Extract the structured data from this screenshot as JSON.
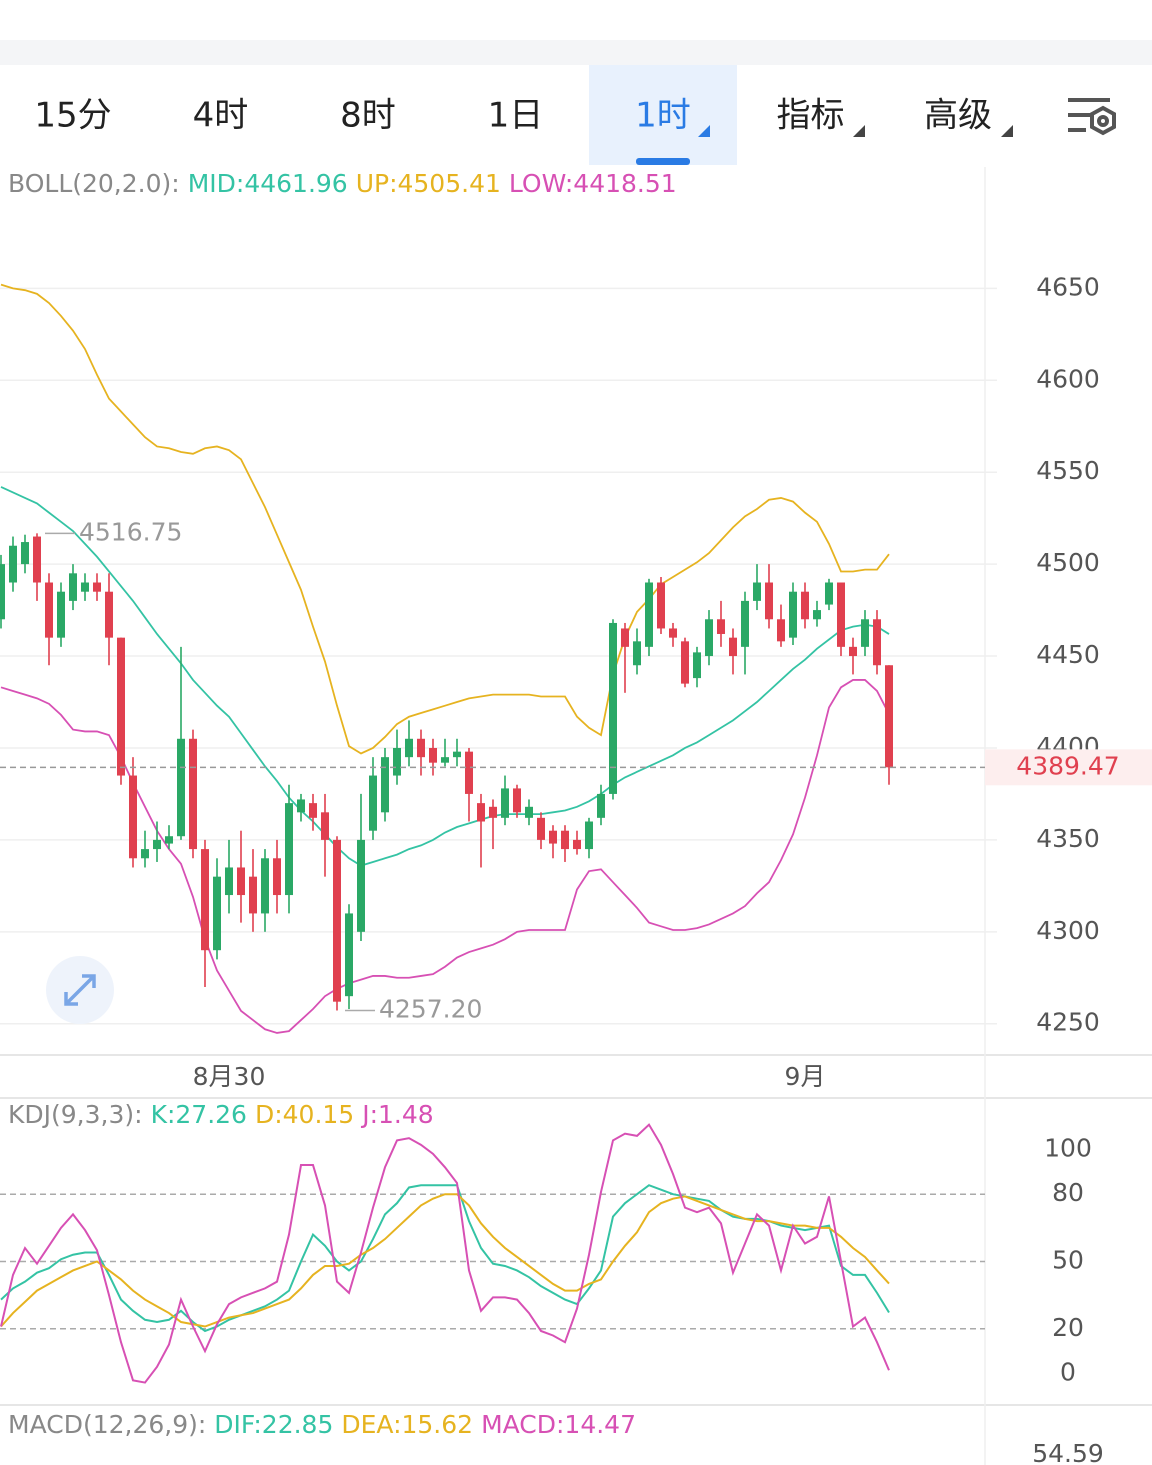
{
  "tabs": [
    "15分",
    "4时",
    "8时",
    "1日",
    "1时",
    "指标",
    "高级"
  ],
  "active_tab": 4,
  "chart_data": [
    {
      "type": "candlestick",
      "title": "BOLL(20,2.0):",
      "categories": [
        null,
        null,
        null,
        null,
        null,
        null,
        null,
        null,
        null,
        null,
        null,
        null,
        null,
        null,
        null,
        null,
        null,
        null,
        null,
        "8月30",
        null,
        null,
        null,
        null,
        null,
        null,
        null,
        null,
        null,
        null,
        null,
        null,
        null,
        null,
        null,
        null,
        null,
        null,
        null,
        null,
        null,
        null,
        null,
        null,
        null,
        null,
        null,
        null,
        null,
        null,
        null,
        null,
        null,
        null,
        null,
        null,
        null,
        null,
        null,
        null,
        null,
        null,
        null,
        null,
        null,
        null,
        null,
        "9月",
        null,
        null,
        null,
        null,
        null,
        null,
        null
      ],
      "open": [
        4470,
        4490,
        4500,
        4515,
        4490,
        4460,
        4480,
        4485,
        4490,
        4485,
        4460,
        4385,
        4340,
        4345,
        4348,
        4352,
        4405,
        4345,
        4290,
        4320,
        4335,
        4330,
        4310,
        4340,
        4320,
        4365,
        4370,
        4365,
        4350,
        4265,
        4300,
        4355,
        4365,
        4385,
        4395,
        4405,
        4400,
        4392,
        4395,
        4398,
        4370,
        4368,
        4362,
        4378,
        4362,
        4362,
        4355,
        4355,
        4350,
        4345,
        4362,
        4375,
        4465,
        4445,
        4455,
        4490,
        4465,
        4458,
        4438,
        4450,
        4470,
        4460,
        4455,
        4480,
        4490,
        4470,
        4460,
        4485,
        4470,
        4478,
        4490,
        4455,
        4455,
        4470,
        4445
      ],
      "high": [
        4505,
        4515,
        4516,
        4516.75,
        4495,
        4490,
        4500,
        4495,
        4495,
        4495,
        4460,
        4395,
        4355,
        4360,
        4358,
        4455,
        4410,
        4350,
        4340,
        4350,
        4355,
        4345,
        4345,
        4350,
        4380,
        4375,
        4375,
        4375,
        4352,
        4315,
        4375,
        4395,
        4400,
        4410,
        4415,
        4410,
        4405,
        4405,
        4405,
        4400,
        4375,
        4372,
        4385,
        4380,
        4372,
        4365,
        4358,
        4358,
        4355,
        4362,
        4380,
        4470,
        4468,
        4465,
        4492,
        4493,
        4468,
        4460,
        4455,
        4475,
        4480,
        4465,
        4485,
        4500,
        4500,
        4478,
        4490,
        4490,
        4480,
        4492,
        4490,
        4460,
        4475,
        4475,
        4445
      ],
      "low": [
        4465,
        4485,
        4495,
        4480,
        4445,
        4455,
        4475,
        4480,
        4480,
        4445,
        4380,
        4335,
        4335,
        4338,
        4345,
        4350,
        4340,
        4270,
        4285,
        4310,
        4305,
        4300,
        4300,
        4310,
        4310,
        4360,
        4355,
        4330,
        4257.2,
        4258,
        4295,
        4350,
        4360,
        4380,
        4390,
        4385,
        4385,
        4390,
        4390,
        4360,
        4335,
        4345,
        4358,
        4362,
        4358,
        4345,
        4340,
        4338,
        4342,
        4340,
        4358,
        4372,
        4430,
        4440,
        4450,
        4462,
        4455,
        4433,
        4433,
        4445,
        4455,
        4440,
        4440,
        4475,
        4465,
        4455,
        4456,
        4465,
        4466,
        4475,
        4450,
        4440,
        4450,
        4440,
        4380
      ],
      "close": [
        4500,
        4510,
        4512,
        4490,
        4460,
        4485,
        4495,
        4490,
        4485,
        4460,
        4385,
        4340,
        4345,
        4350,
        4352,
        4405,
        4345,
        4290,
        4330,
        4335,
        4320,
        4310,
        4340,
        4320,
        4370,
        4372,
        4362,
        4350,
        4262,
        4310,
        4350,
        4385,
        4395,
        4400,
        4405,
        4395,
        4392,
        4395,
        4398,
        4375,
        4360,
        4362,
        4378,
        4365,
        4368,
        4350,
        4348,
        4345,
        4345,
        4360,
        4375,
        4468,
        4455,
        4458,
        4490,
        4465,
        4460,
        4435,
        4452,
        4470,
        4462,
        4450,
        4480,
        4490,
        4470,
        4458,
        4485,
        4470,
        4475,
        4490,
        4455,
        4450,
        4470,
        4445,
        4389.47
      ],
      "up_color": "#2aa866",
      "down_color": "#e0404f",
      "series": [
        {
          "name": "MID:4461.96",
          "color": "#34c3a4",
          "values": [
            4542,
            4539,
            4536,
            4533,
            4528,
            4523,
            4518,
            4511,
            4504,
            4496,
            4488,
            4480,
            4471,
            4462,
            4454,
            4446,
            4437,
            4430,
            4423,
            4417,
            4408,
            4399,
            4390,
            4382,
            4373,
            4366,
            4360,
            4353,
            4346,
            4340,
            4336,
            4338,
            4340,
            4342,
            4345,
            4347,
            4350,
            4354,
            4357,
            4359,
            4361,
            4363,
            4364,
            4364,
            4364,
            4364,
            4365,
            4366,
            4368,
            4371,
            4375,
            4380,
            4384,
            4387,
            4390,
            4393,
            4396,
            4400,
            4403,
            4407,
            4411,
            4415,
            4420,
            4425,
            4431,
            4437,
            4443,
            4448,
            4454,
            4459,
            4464,
            4466,
            4467,
            4466,
            4461.96
          ]
        },
        {
          "name": "UP:4505.41",
          "color": "#e6b320",
          "values": [
            4652,
            4650,
            4649,
            4647,
            4642,
            4635,
            4627,
            4617,
            4603,
            4590,
            4583,
            4576,
            4569,
            4564,
            4563,
            4561,
            4560,
            4563,
            4564,
            4562,
            4557,
            4544,
            4531,
            4516,
            4501,
            4486,
            4466,
            4447,
            4423,
            4401,
            4397,
            4400,
            4406,
            4413,
            4417,
            4419,
            4421,
            4423,
            4425,
            4427,
            4428,
            4429,
            4429,
            4429,
            4429,
            4428,
            4428,
            4428,
            4417,
            4411,
            4407,
            4440,
            4460,
            4474,
            4481,
            4489,
            4493,
            4497,
            4501,
            4506,
            4513,
            4520,
            4526,
            4530,
            4535,
            4536,
            4534,
            4528,
            4523,
            4511,
            4496,
            4496,
            4497,
            4497,
            4505.41
          ]
        },
        {
          "name": "LOW:4418.51",
          "color": "#d750b4",
          "values": [
            4433,
            4431,
            4429,
            4427,
            4424,
            4418,
            4410,
            4409,
            4409,
            4407,
            4395,
            4381,
            4368,
            4355,
            4345,
            4337,
            4319,
            4296,
            4279,
            4268,
            4257,
            4252,
            4247,
            4245,
            4246,
            4252,
            4258,
            4265,
            4269,
            4272,
            4274,
            4276,
            4276,
            4275,
            4275,
            4276,
            4277,
            4281,
            4286,
            4289,
            4291,
            4293,
            4296,
            4300,
            4301,
            4301,
            4301,
            4301,
            4323,
            4333,
            4334,
            4327,
            4320,
            4313,
            4305,
            4303,
            4301,
            4301,
            4302,
            4304,
            4307,
            4310,
            4314,
            4321,
            4327,
            4339,
            4353,
            4373,
            4396,
            4422,
            4433,
            4437,
            4437,
            4431,
            4418.51
          ]
        }
      ],
      "annotations": [
        4516.75,
        {
          "value": 4257.2,
          "label": "4257.20"
        }
      ],
      "last_price": 4389.47,
      "ylim": [
        4233,
        4716
      ],
      "yticks": [
        4250,
        4300,
        4350,
        4400,
        4450,
        4500,
        4550,
        4600,
        4650
      ],
      "grid": true
    },
    {
      "type": "line",
      "title": "KDJ(9,3,3):",
      "series": [
        {
          "name": "K:27.26",
          "color": "#34c3a4",
          "values": [
            33,
            38,
            41,
            45,
            47,
            51,
            53,
            54,
            54,
            44,
            33,
            28,
            24,
            23,
            24,
            28,
            23,
            19,
            21,
            24,
            26,
            28,
            30,
            33,
            37,
            50,
            62,
            57,
            50,
            46,
            50,
            60,
            71,
            76,
            83,
            84,
            84,
            84,
            84,
            68,
            56,
            49,
            48,
            46,
            43,
            39,
            36,
            33,
            31,
            38,
            46,
            70,
            76,
            80,
            84,
            82,
            80,
            79,
            78,
            77,
            73,
            70,
            69,
            69,
            68,
            66,
            65,
            64,
            65,
            66,
            48,
            44,
            44,
            36,
            27.26
          ]
        },
        {
          "name": "D:40.15",
          "color": "#e6b320",
          "values": [
            21,
            27,
            32,
            37,
            40,
            43,
            46,
            48,
            50,
            46,
            42,
            37,
            33,
            30,
            27,
            23,
            22,
            21,
            23,
            25,
            26,
            27,
            29,
            31,
            33,
            38,
            44,
            48,
            48,
            49,
            53,
            56,
            60,
            65,
            70,
            75,
            78,
            80,
            80,
            75,
            67,
            61,
            56,
            52,
            48,
            44,
            40,
            37,
            37,
            40,
            42,
            50,
            57,
            63,
            72,
            76,
            78,
            79,
            77,
            75,
            73,
            71,
            69,
            68,
            68,
            67,
            66,
            66,
            65,
            65,
            61,
            56,
            52,
            46,
            40.15
          ]
        },
        {
          "name": "J:1.48",
          "color": "#d750b4",
          "values": [
            21,
            44,
            56,
            49,
            57,
            65,
            71,
            64,
            55,
            35,
            14,
            -3,
            -4,
            3,
            13,
            33,
            21,
            10,
            22,
            31,
            34,
            36,
            38,
            41,
            62,
            93,
            93,
            75,
            41,
            36,
            54,
            74,
            92,
            104,
            105,
            102,
            98,
            92,
            85,
            46,
            28,
            34,
            34,
            33,
            27,
            19,
            17,
            14,
            29,
            53,
            81,
            104,
            107,
            106,
            111,
            102,
            89,
            74,
            72,
            74,
            67,
            45,
            58,
            71,
            66,
            46,
            66,
            58,
            61,
            79,
            50,
            21,
            25,
            14,
            1.48
          ]
        }
      ],
      "ylim": [
        -14,
        122
      ],
      "yticks": [
        0,
        20,
        50,
        80,
        100
      ],
      "reference_lines": [
        20,
        50,
        80
      ]
    },
    {
      "type": "macd",
      "title": "MACD(12,26,9):",
      "legend": [
        {
          "name": "DIF:22.85",
          "color": "#34c3a4"
        },
        {
          "name": "DEA:15.62",
          "color": "#e6b320"
        },
        {
          "name": "MACD:14.47",
          "color": "#d750b4"
        }
      ],
      "yticks": [
        54.59
      ]
    }
  ]
}
